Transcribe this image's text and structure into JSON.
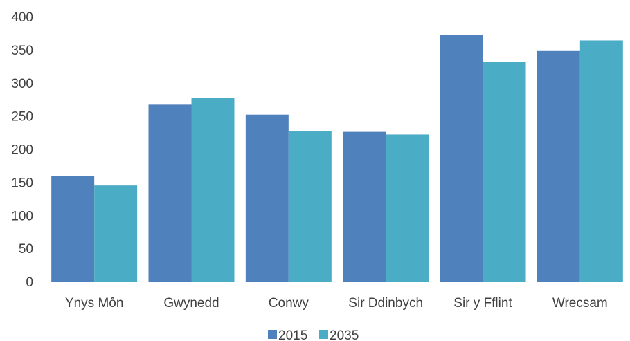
{
  "chart_data": {
    "type": "bar",
    "categories": [
      "Ynys Môn",
      "Gwynedd",
      "Conwy",
      "Sir Ddinbych",
      "Sir y Fflint",
      "Wrecsam"
    ],
    "series": [
      {
        "name": "2015",
        "color": "#4f81bd",
        "values": [
          159,
          267,
          252,
          226,
          372,
          348
        ]
      },
      {
        "name": "2035",
        "color": "#4bacc6",
        "values": [
          145,
          277,
          227,
          222,
          332,
          364
        ]
      }
    ],
    "ylim": [
      0,
      400
    ],
    "yticks": [
      0,
      50,
      100,
      150,
      200,
      250,
      300,
      350,
      400
    ],
    "grid": false,
    "legend_position": "bottom"
  }
}
